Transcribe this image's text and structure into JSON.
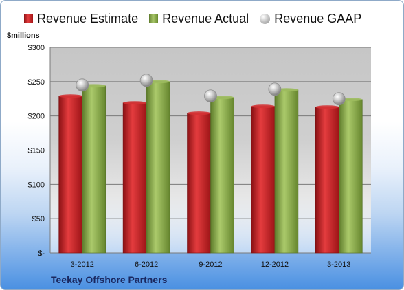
{
  "chart_data": {
    "type": "bar",
    "title": "Teekay Offshore Partners",
    "ylabel": "$millions",
    "categories": [
      "3-2012",
      "6-2012",
      "9-2012",
      "12-2012",
      "3-2013"
    ],
    "series": [
      {
        "name": "Revenue Estimate",
        "kind": "bar",
        "color": "#c9252b",
        "values": [
          229,
          219,
          204,
          214,
          213
        ]
      },
      {
        "name": "Revenue Actual",
        "kind": "bar",
        "color": "#8fb050",
        "values": [
          244,
          250,
          227,
          238,
          224
        ]
      },
      {
        "name": "Revenue GAAP",
        "kind": "marker",
        "color": "#b8b8b8",
        "values": [
          245,
          252,
          229,
          239,
          225
        ]
      }
    ],
    "ylim": [
      0,
      300
    ],
    "yticks": [
      0,
      50,
      100,
      150,
      200,
      250,
      300
    ],
    "ytick_labels": [
      "$-",
      "$50",
      "$100",
      "$150",
      "$200",
      "$250",
      "$300"
    ],
    "grid": true,
    "legend_position": "top"
  }
}
